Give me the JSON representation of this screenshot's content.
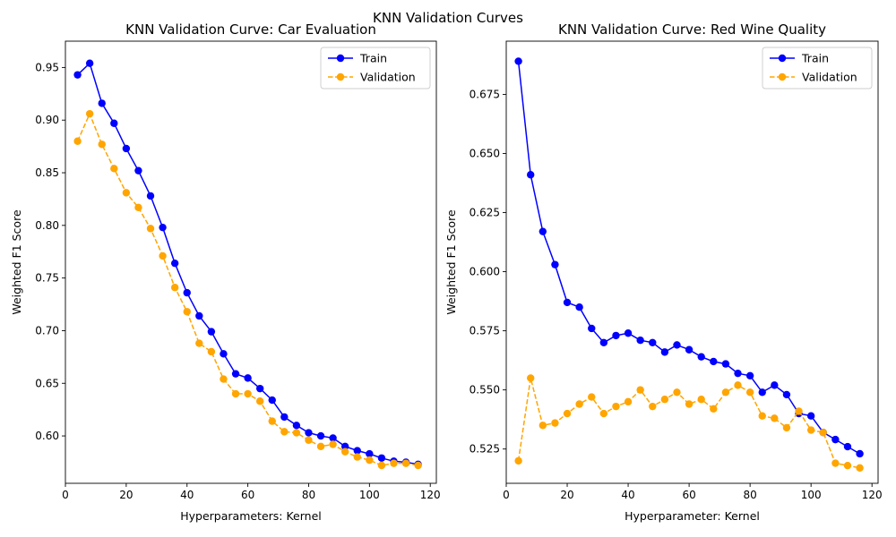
{
  "figure": {
    "suptitle": "KNN Validation Curves"
  },
  "colors": {
    "train": "#0000ff",
    "validation": "#ffa500"
  },
  "chart_data": [
    {
      "type": "line",
      "title": "KNN Validation Curve: Car Evaluation",
      "xlabel": "Hyperparameters: Kernel",
      "ylabel": "Weighted F1 Score",
      "xlim": [
        0,
        122
      ],
      "ylim": [
        0.555,
        0.975
      ],
      "xticks": [
        0,
        20,
        40,
        60,
        80,
        100,
        120
      ],
      "yticks": [
        0.6,
        0.65,
        0.7,
        0.75,
        0.8,
        0.85,
        0.9,
        0.95
      ],
      "ytick_labels": [
        "0.60",
        "0.65",
        "0.70",
        "0.75",
        "0.80",
        "0.85",
        "0.90",
        "0.95"
      ],
      "legend_position": "top-right",
      "x": [
        4,
        8,
        12,
        16,
        20,
        24,
        28,
        32,
        36,
        40,
        44,
        48,
        52,
        56,
        60,
        64,
        68,
        72,
        76,
        80,
        84,
        88,
        92,
        96,
        100,
        104,
        108,
        112,
        116
      ],
      "series": [
        {
          "name": "Train",
          "style": "solid",
          "color": "#0000ff",
          "values": [
            0.943,
            0.954,
            0.916,
            0.897,
            0.873,
            0.852,
            0.828,
            0.798,
            0.764,
            0.736,
            0.714,
            0.699,
            0.678,
            0.659,
            0.655,
            0.645,
            0.634,
            0.618,
            0.61,
            0.603,
            0.6,
            0.598,
            0.59,
            0.586,
            0.583,
            0.579,
            0.576,
            0.575,
            0.573
          ]
        },
        {
          "name": "Validation",
          "style": "dashed",
          "color": "#ffa500",
          "values": [
            0.88,
            0.906,
            0.877,
            0.854,
            0.831,
            0.817,
            0.797,
            0.771,
            0.741,
            0.718,
            0.688,
            0.68,
            0.654,
            0.64,
            0.64,
            0.633,
            0.614,
            0.604,
            0.603,
            0.596,
            0.59,
            0.592,
            0.585,
            0.58,
            0.577,
            0.572,
            0.574,
            0.574,
            0.572
          ]
        }
      ]
    },
    {
      "type": "line",
      "title": "KNN Validation Curve: Red Wine Quality",
      "xlabel": "Hyperparameter: Kernel",
      "ylabel": "Weighted F1 Score",
      "xlim": [
        0,
        122
      ],
      "ylim": [
        0.5105,
        0.6975
      ],
      "xticks": [
        0,
        20,
        40,
        60,
        80,
        100,
        120
      ],
      "yticks": [
        0.525,
        0.55,
        0.575,
        0.6,
        0.625,
        0.65,
        0.675
      ],
      "ytick_labels": [
        "0.525",
        "0.550",
        "0.575",
        "0.600",
        "0.625",
        "0.650",
        "0.675"
      ],
      "legend_position": "top-right",
      "x": [
        4,
        8,
        12,
        16,
        20,
        24,
        28,
        32,
        36,
        40,
        44,
        48,
        52,
        56,
        60,
        64,
        68,
        72,
        76,
        80,
        84,
        88,
        92,
        96,
        100,
        104,
        108,
        112,
        116
      ],
      "series": [
        {
          "name": "Train",
          "style": "solid",
          "color": "#0000ff",
          "values": [
            0.689,
            0.641,
            0.617,
            0.603,
            0.587,
            0.585,
            0.576,
            0.57,
            0.573,
            0.574,
            0.571,
            0.57,
            0.566,
            0.569,
            0.567,
            0.564,
            0.562,
            0.561,
            0.557,
            0.556,
            0.549,
            0.552,
            0.548,
            0.54,
            0.539,
            0.532,
            0.529,
            0.526,
            0.523
          ]
        },
        {
          "name": "Validation",
          "style": "dashed",
          "color": "#ffa500",
          "values": [
            0.52,
            0.555,
            0.535,
            0.536,
            0.54,
            0.544,
            0.547,
            0.54,
            0.543,
            0.545,
            0.55,
            0.543,
            0.546,
            0.549,
            0.544,
            0.546,
            0.542,
            0.549,
            0.552,
            0.549,
            0.539,
            0.538,
            0.534,
            0.541,
            0.533,
            0.532,
            0.519,
            0.518,
            0.517
          ]
        }
      ]
    }
  ]
}
